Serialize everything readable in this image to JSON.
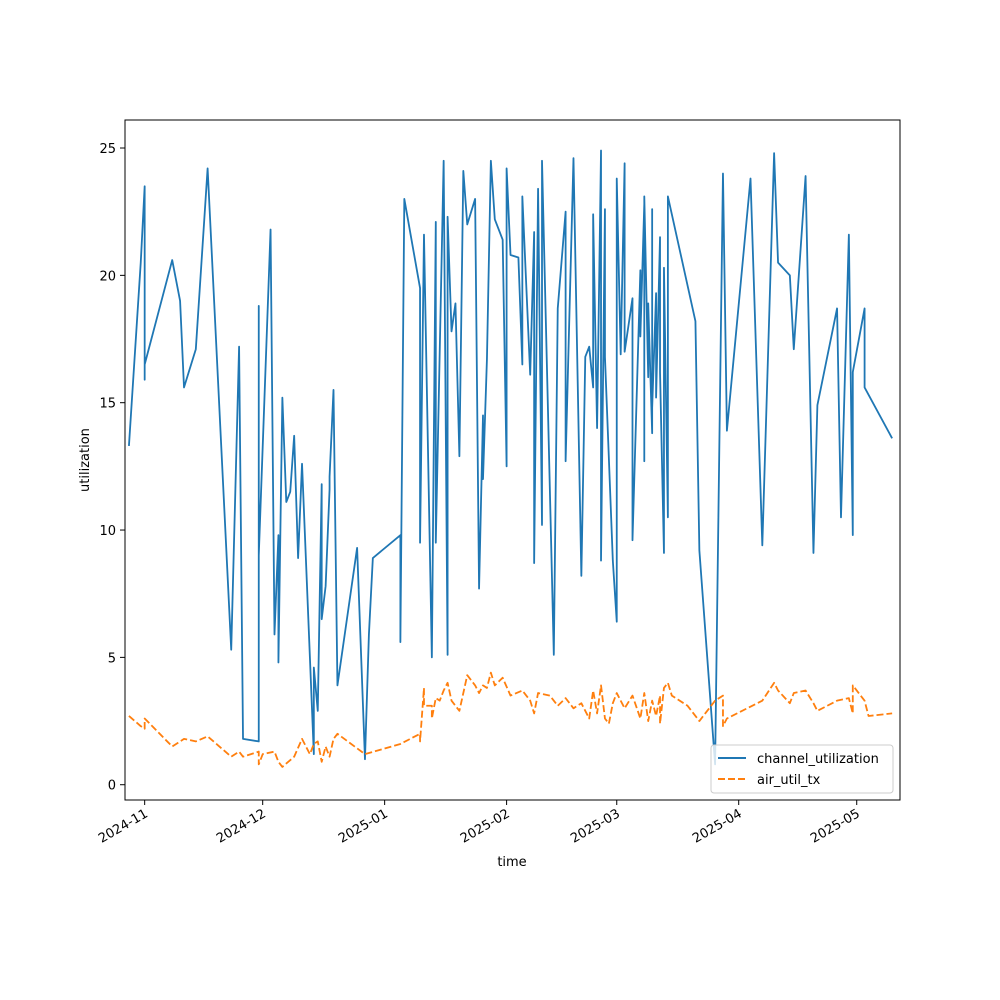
{
  "chart_data": {
    "type": "line",
    "title": "",
    "xlabel": "time",
    "ylabel": "utilization",
    "xlim": [
      "2024-10-27",
      "2025-05-12"
    ],
    "ylim": [
      -0.6,
      26.1
    ],
    "x_ticks": [
      {
        "date": "2024-11-01",
        "label": "2024-11"
      },
      {
        "date": "2024-12-01",
        "label": "2024-12"
      },
      {
        "date": "2025-01-01",
        "label": "2025-01"
      },
      {
        "date": "2025-02-01",
        "label": "2025-02"
      },
      {
        "date": "2025-03-01",
        "label": "2025-03"
      },
      {
        "date": "2025-04-01",
        "label": "2025-04"
      },
      {
        "date": "2025-05-01",
        "label": "2025-05"
      }
    ],
    "y_ticks": [
      {
        "value": 0,
        "label": "0"
      },
      {
        "value": 5,
        "label": "5"
      },
      {
        "value": 10,
        "label": "10"
      },
      {
        "value": 15,
        "label": "15"
      },
      {
        "value": 20,
        "label": "20"
      },
      {
        "value": 25,
        "label": "25"
      }
    ],
    "grid": false,
    "legend_position": "lower-right",
    "series": [
      {
        "name": "channel_utilization",
        "color": "#1f77b4",
        "style": "solid",
        "points": [
          [
            "2024-10-28",
            13.3
          ],
          [
            "2024-10-31",
            20.5
          ],
          [
            "2024-11-01",
            23.5
          ],
          [
            "2024-11-01",
            15.9
          ],
          [
            "2024-11-01",
            16.5
          ],
          [
            "2024-11-08",
            20.6
          ],
          [
            "2024-11-10",
            19.0
          ],
          [
            "2024-11-11",
            15.6
          ],
          [
            "2024-11-14",
            17.1
          ],
          [
            "2024-11-17",
            24.2
          ],
          [
            "2024-11-23",
            5.3
          ],
          [
            "2024-11-25",
            17.2
          ],
          [
            "2024-11-26",
            1.8
          ],
          [
            "2024-11-30",
            1.7
          ],
          [
            "2024-11-30",
            18.8
          ],
          [
            "2024-11-30",
            9.0
          ],
          [
            "2024-12-03",
            21.8
          ],
          [
            "2024-12-04",
            5.9
          ],
          [
            "2024-12-05",
            9.8
          ],
          [
            "2024-12-05",
            4.8
          ],
          [
            "2024-12-06",
            15.2
          ],
          [
            "2024-12-07",
            11.1
          ],
          [
            "2024-12-08",
            11.5
          ],
          [
            "2024-12-09",
            13.7
          ],
          [
            "2024-12-10",
            8.9
          ],
          [
            "2024-12-11",
            12.6
          ],
          [
            "2024-12-13",
            5.0
          ],
          [
            "2024-12-14",
            1.2
          ],
          [
            "2024-12-14",
            4.6
          ],
          [
            "2024-12-15",
            2.9
          ],
          [
            "2024-12-16",
            11.8
          ],
          [
            "2024-12-16",
            6.5
          ],
          [
            "2024-12-17",
            7.8
          ],
          [
            "2024-12-18",
            11.6
          ],
          [
            "2024-12-18",
            12.1
          ],
          [
            "2024-12-19",
            15.5
          ],
          [
            "2024-12-20",
            3.9
          ],
          [
            "2024-12-25",
            9.3
          ],
          [
            "2024-12-27",
            1.0
          ],
          [
            "2024-12-28",
            5.9
          ],
          [
            "2024-12-29",
            8.9
          ],
          [
            "2025-01-05",
            9.8
          ],
          [
            "2025-01-05",
            5.6
          ],
          [
            "2025-01-06",
            23.0
          ],
          [
            "2025-01-10",
            19.5
          ],
          [
            "2025-01-10",
            9.5
          ],
          [
            "2025-01-11",
            21.6
          ],
          [
            "2025-01-13",
            5.0
          ],
          [
            "2025-01-14",
            22.1
          ],
          [
            "2025-01-14",
            9.5
          ],
          [
            "2025-01-16",
            24.5
          ],
          [
            "2025-01-17",
            5.1
          ],
          [
            "2025-01-17",
            22.3
          ],
          [
            "2025-01-18",
            17.8
          ],
          [
            "2025-01-19",
            18.9
          ],
          [
            "2025-01-20",
            12.9
          ],
          [
            "2025-01-21",
            24.1
          ],
          [
            "2025-01-22",
            22.0
          ],
          [
            "2025-01-24",
            23.0
          ],
          [
            "2025-01-25",
            7.7
          ],
          [
            "2025-01-26",
            14.5
          ],
          [
            "2025-01-26",
            12.0
          ],
          [
            "2025-01-27",
            16.7
          ],
          [
            "2025-01-28",
            24.5
          ],
          [
            "2025-01-29",
            22.2
          ],
          [
            "2025-01-31",
            21.4
          ],
          [
            "2025-02-01",
            12.5
          ],
          [
            "2025-02-01",
            24.2
          ],
          [
            "2025-02-02",
            20.8
          ],
          [
            "2025-02-04",
            20.7
          ],
          [
            "2025-02-05",
            16.5
          ],
          [
            "2025-02-05",
            23.1
          ],
          [
            "2025-02-07",
            16.1
          ],
          [
            "2025-02-08",
            21.7
          ],
          [
            "2025-02-08",
            8.7
          ],
          [
            "2025-02-09",
            23.4
          ],
          [
            "2025-02-10",
            10.2
          ],
          [
            "2025-02-10",
            24.5
          ],
          [
            "2025-02-13",
            5.1
          ],
          [
            "2025-02-14",
            18.7
          ],
          [
            "2025-02-16",
            22.5
          ],
          [
            "2025-02-16",
            12.7
          ],
          [
            "2025-02-18",
            24.6
          ],
          [
            "2025-02-20",
            8.2
          ],
          [
            "2025-02-21",
            16.8
          ],
          [
            "2025-02-22",
            17.2
          ],
          [
            "2025-02-23",
            15.6
          ],
          [
            "2025-02-23",
            22.4
          ],
          [
            "2025-02-24",
            14.0
          ],
          [
            "2025-02-25",
            24.9
          ],
          [
            "2025-02-25",
            14.0
          ],
          [
            "2025-02-25",
            8.8
          ],
          [
            "2025-02-26",
            22.6
          ],
          [
            "2025-02-26",
            16.8
          ],
          [
            "2025-02-28",
            8.8
          ],
          [
            "2025-03-01",
            6.4
          ],
          [
            "2025-03-01",
            23.8
          ],
          [
            "2025-03-02",
            16.9
          ],
          [
            "2025-03-03",
            24.4
          ],
          [
            "2025-03-03",
            17.0
          ],
          [
            "2025-03-05",
            19.1
          ],
          [
            "2025-03-05",
            9.6
          ],
          [
            "2025-03-07",
            20.2
          ],
          [
            "2025-03-07",
            17.6
          ],
          [
            "2025-03-08",
            22.8
          ],
          [
            "2025-03-08",
            12.7
          ],
          [
            "2025-03-08",
            23.1
          ],
          [
            "2025-03-09",
            16.0
          ],
          [
            "2025-03-09",
            18.9
          ],
          [
            "2025-03-10",
            13.8
          ],
          [
            "2025-03-10",
            22.6
          ],
          [
            "2025-03-10",
            14.8
          ],
          [
            "2025-03-11",
            19.3
          ],
          [
            "2025-03-11",
            15.2
          ],
          [
            "2025-03-12",
            21.5
          ],
          [
            "2025-03-12",
            16.2
          ],
          [
            "2025-03-13",
            9.1
          ],
          [
            "2025-03-13",
            20.3
          ],
          [
            "2025-03-14",
            10.5
          ],
          [
            "2025-03-14",
            23.1
          ],
          [
            "2025-03-21",
            18.2
          ],
          [
            "2025-03-22",
            9.2
          ],
          [
            "2025-03-26",
            0.8
          ],
          [
            "2025-03-28",
            24.0
          ],
          [
            "2025-03-28",
            24.0
          ],
          [
            "2025-03-29",
            13.9
          ],
          [
            "2025-04-04",
            23.8
          ],
          [
            "2025-04-07",
            9.4
          ],
          [
            "2025-04-10",
            24.8
          ],
          [
            "2025-04-11",
            20.5
          ],
          [
            "2025-04-14",
            20.0
          ],
          [
            "2025-04-15",
            17.1
          ],
          [
            "2025-04-18",
            23.9
          ],
          [
            "2025-04-20",
            9.1
          ],
          [
            "2025-04-21",
            14.9
          ],
          [
            "2025-04-26",
            18.7
          ],
          [
            "2025-04-27",
            10.5
          ],
          [
            "2025-04-29",
            21.6
          ],
          [
            "2025-04-30",
            9.8
          ],
          [
            "2025-04-30",
            16.2
          ],
          [
            "2025-05-03",
            18.7
          ],
          [
            "2025-05-03",
            15.6
          ],
          [
            "2025-05-10",
            13.6
          ]
        ]
      },
      {
        "name": "air_util_tx",
        "color": "#ff7f0e",
        "style": "dashed",
        "points": [
          [
            "2024-10-28",
            2.7
          ],
          [
            "2024-10-31",
            2.3
          ],
          [
            "2024-11-01",
            2.2
          ],
          [
            "2024-11-01",
            2.6
          ],
          [
            "2024-11-08",
            1.5
          ],
          [
            "2024-11-11",
            1.8
          ],
          [
            "2024-11-14",
            1.7
          ],
          [
            "2024-11-17",
            1.9
          ],
          [
            "2024-11-23",
            1.1
          ],
          [
            "2024-11-25",
            1.3
          ],
          [
            "2024-11-26",
            1.1
          ],
          [
            "2024-11-30",
            1.3
          ],
          [
            "2024-11-30",
            0.8
          ],
          [
            "2024-12-01",
            1.2
          ],
          [
            "2024-12-04",
            1.3
          ],
          [
            "2024-12-05",
            0.9
          ],
          [
            "2024-12-06",
            0.7
          ],
          [
            "2024-12-09",
            1.1
          ],
          [
            "2024-12-11",
            1.8
          ],
          [
            "2024-12-13",
            1.2
          ],
          [
            "2024-12-14",
            1.6
          ],
          [
            "2024-12-15",
            1.7
          ],
          [
            "2024-12-16",
            0.9
          ],
          [
            "2024-12-17",
            1.5
          ],
          [
            "2024-12-18",
            1.1
          ],
          [
            "2024-12-19",
            1.8
          ],
          [
            "2024-12-20",
            2.0
          ],
          [
            "2024-12-27",
            1.2
          ],
          [
            "2025-01-05",
            1.6
          ],
          [
            "2025-01-10",
            2.0
          ],
          [
            "2025-01-10",
            1.7
          ],
          [
            "2025-01-11",
            3.8
          ],
          [
            "2025-01-11",
            3.1
          ],
          [
            "2025-01-13",
            3.1
          ],
          [
            "2025-01-13",
            2.6
          ],
          [
            "2025-01-14",
            3.4
          ],
          [
            "2025-01-15",
            3.3
          ],
          [
            "2025-01-16",
            3.7
          ],
          [
            "2025-01-17",
            4.0
          ],
          [
            "2025-01-18",
            3.3
          ],
          [
            "2025-01-20",
            2.9
          ],
          [
            "2025-01-22",
            4.3
          ],
          [
            "2025-01-24",
            3.9
          ],
          [
            "2025-01-25",
            3.6
          ],
          [
            "2025-01-26",
            3.9
          ],
          [
            "2025-01-27",
            3.8
          ],
          [
            "2025-01-28",
            4.4
          ],
          [
            "2025-01-29",
            3.9
          ],
          [
            "2025-01-31",
            4.2
          ],
          [
            "2025-02-02",
            3.5
          ],
          [
            "2025-02-05",
            3.7
          ],
          [
            "2025-02-07",
            3.3
          ],
          [
            "2025-02-08",
            2.8
          ],
          [
            "2025-02-09",
            3.6
          ],
          [
            "2025-02-12",
            3.5
          ],
          [
            "2025-02-14",
            3.1
          ],
          [
            "2025-02-16",
            3.4
          ],
          [
            "2025-02-18",
            3.0
          ],
          [
            "2025-02-20",
            3.2
          ],
          [
            "2025-02-22",
            2.6
          ],
          [
            "2025-02-23",
            3.7
          ],
          [
            "2025-02-24",
            2.8
          ],
          [
            "2025-02-25",
            3.9
          ],
          [
            "2025-02-26",
            2.6
          ],
          [
            "2025-02-27",
            2.4
          ],
          [
            "2025-02-28",
            3.2
          ],
          [
            "2025-03-01",
            3.6
          ],
          [
            "2025-03-03",
            3.0
          ],
          [
            "2025-03-05",
            3.5
          ],
          [
            "2025-03-07",
            2.6
          ],
          [
            "2025-03-08",
            3.6
          ],
          [
            "2025-03-09",
            2.5
          ],
          [
            "2025-03-10",
            3.3
          ],
          [
            "2025-03-11",
            2.7
          ],
          [
            "2025-03-12",
            3.5
          ],
          [
            "2025-03-12",
            2.4
          ],
          [
            "2025-03-13",
            3.8
          ],
          [
            "2025-03-14",
            4.0
          ],
          [
            "2025-03-15",
            3.5
          ],
          [
            "2025-03-19",
            3.1
          ],
          [
            "2025-03-22",
            2.5
          ],
          [
            "2025-03-26",
            3.3
          ],
          [
            "2025-03-28",
            3.5
          ],
          [
            "2025-03-28",
            2.3
          ],
          [
            "2025-03-29",
            2.6
          ],
          [
            "2025-04-07",
            3.3
          ],
          [
            "2025-04-10",
            4.0
          ],
          [
            "2025-04-11",
            3.7
          ],
          [
            "2025-04-14",
            3.2
          ],
          [
            "2025-04-15",
            3.6
          ],
          [
            "2025-04-18",
            3.7
          ],
          [
            "2025-04-20",
            3.2
          ],
          [
            "2025-04-21",
            2.9
          ],
          [
            "2025-04-26",
            3.3
          ],
          [
            "2025-04-29",
            3.4
          ],
          [
            "2025-04-30",
            2.8
          ],
          [
            "2025-04-30",
            3.9
          ],
          [
            "2025-05-03",
            3.3
          ],
          [
            "2025-05-04",
            2.7
          ],
          [
            "2025-05-10",
            2.8
          ]
        ]
      }
    ]
  }
}
